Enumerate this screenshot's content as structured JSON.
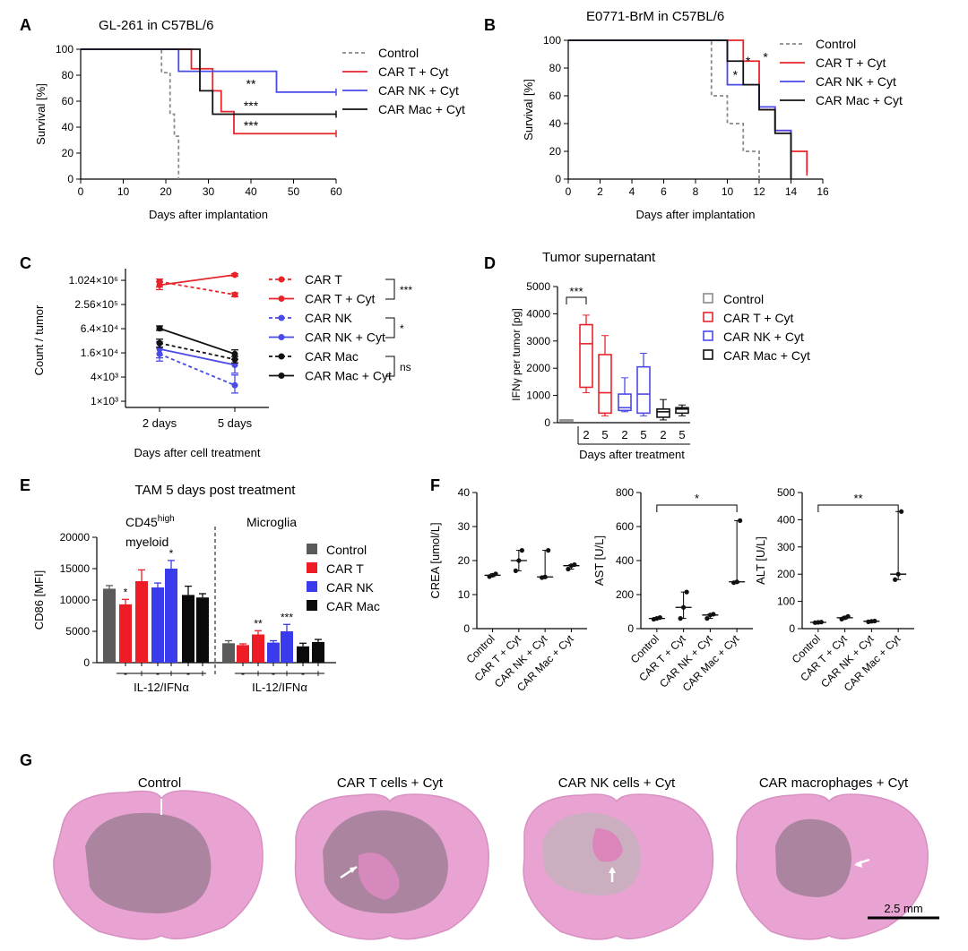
{
  "chart_data": [
    {
      "panel": "A",
      "type": "line",
      "title": "GL-261 in C57BL/6",
      "xlabel": "Days after implantation",
      "ylabel": "Survival [%]",
      "xlim": [
        0,
        60
      ],
      "ylim": [
        0,
        100
      ],
      "x_ticks": [
        "0",
        "10",
        "20",
        "30",
        "40",
        "50",
        "60"
      ],
      "y_ticks": [
        "0",
        "20",
        "40",
        "60",
        "80",
        "100"
      ],
      "legend_position": "right",
      "series": [
        {
          "name": "Control",
          "color": "#8a8a8a",
          "dash": true,
          "x": [
            0,
            19,
            19,
            21,
            21,
            22,
            22,
            23,
            23
          ],
          "y": [
            100,
            100,
            82,
            82,
            50,
            50,
            33,
            33,
            0
          ]
        },
        {
          "name": "CAR T + Cyt",
          "color": "#e8242b",
          "dash": false,
          "x": [
            0,
            26,
            26,
            31,
            31,
            33,
            33,
            36,
            36,
            60
          ],
          "y": [
            100,
            100,
            85,
            85,
            68,
            68,
            52,
            52,
            35,
            35
          ]
        },
        {
          "name": "CAR NK + Cyt",
          "color": "#4a4ae8",
          "dash": false,
          "x": [
            0,
            23,
            23,
            46,
            46,
            60
          ],
          "y": [
            100,
            100,
            83,
            83,
            67,
            67
          ]
        },
        {
          "name": "CAR Mac + Cyt",
          "color": "#111111",
          "dash": false,
          "x": [
            0,
            28,
            28,
            31,
            31,
            60
          ],
          "y": [
            100,
            100,
            68,
            68,
            50,
            50
          ]
        }
      ],
      "annotations": [
        {
          "text": "**",
          "x": 40,
          "y": 70
        },
        {
          "text": "***",
          "x": 40,
          "y": 53
        },
        {
          "text": "***",
          "x": 40,
          "y": 38
        }
      ]
    },
    {
      "panel": "B",
      "type": "line",
      "title": "E0771-BrM in C57BL/6",
      "xlabel": "Days after implantation",
      "ylabel": "Survival [%]",
      "xlim": [
        0,
        16
      ],
      "ylim": [
        0,
        100
      ],
      "x_ticks": [
        "0",
        "2",
        "4",
        "6",
        "8",
        "10",
        "12",
        "14",
        "16"
      ],
      "y_ticks": [
        "0",
        "20",
        "40",
        "60",
        "80",
        "100"
      ],
      "legend_position": "right",
      "series": [
        {
          "name": "Control",
          "color": "#8a8a8a",
          "dash": true,
          "x": [
            0,
            9,
            9,
            10,
            10,
            11,
            11,
            12,
            12
          ],
          "y": [
            100,
            100,
            60,
            60,
            40,
            40,
            20,
            20,
            0
          ]
        },
        {
          "name": "CAR T + Cyt",
          "color": "#e8242b",
          "dash": false,
          "x": [
            0,
            11,
            11,
            12,
            12,
            13,
            13,
            14,
            14,
            15,
            15
          ],
          "y": [
            100,
            100,
            85,
            85,
            50,
            50,
            35,
            35,
            20,
            20,
            5
          ]
        },
        {
          "name": "CAR NK + Cyt",
          "color": "#4a4ae8",
          "dash": false,
          "x": [
            0,
            10,
            10,
            11,
            11,
            12,
            12,
            13,
            13,
            14,
            14
          ],
          "y": [
            100,
            100,
            68,
            68,
            68,
            68,
            52,
            52,
            35,
            35,
            0
          ]
        },
        {
          "name": "CAR Mac + Cyt",
          "color": "#111111",
          "dash": false,
          "x": [
            0,
            10,
            10,
            11,
            11,
            12,
            12,
            13,
            13,
            14,
            14
          ],
          "y": [
            100,
            100,
            85,
            85,
            68,
            68,
            50,
            50,
            33,
            33,
            0
          ]
        }
      ],
      "annotations": [
        {
          "text": "*",
          "x": 10.5,
          "y": 72
        },
        {
          "text": "*",
          "x": 11.3,
          "y": 82
        },
        {
          "text": "*",
          "x": 12.4,
          "y": 85
        }
      ]
    },
    {
      "panel": "C",
      "type": "line",
      "xlabel": "Days after cell treatment",
      "ylabel": "Count / tumor",
      "y_scale": "log2",
      "categories": [
        "2 days",
        "5 days"
      ],
      "y_ticks": [
        "1×10³",
        "4×10³",
        "1.6×10⁴",
        "6.4×10⁴",
        "2.56×10⁵",
        "1.024×10⁶"
      ],
      "y_tick_values": [
        1000,
        4000,
        16000,
        64000,
        256000,
        1024000
      ],
      "ylim": [
        700,
        2000000
      ],
      "series": [
        {
          "name": "CAR T",
          "color": "#e8242b",
          "dash": true,
          "values": [
            950000,
            450000
          ],
          "err": [
            [
              700000,
              1100000
            ],
            [
              400000,
              500000
            ]
          ]
        },
        {
          "name": "CAR T + Cyt",
          "color": "#e8242b",
          "dash": false,
          "values": [
            780000,
            1400000
          ],
          "err": [
            [
              600000,
              950000
            ],
            [
              1300000,
              1500000
            ]
          ]
        },
        {
          "name": "CAR NK",
          "color": "#4a4ae8",
          "dash": true,
          "values": [
            15000,
            2500
          ],
          "err": [
            [
              10000,
              22000
            ],
            [
              1600,
              4500
            ]
          ]
        },
        {
          "name": "CAR NK + Cyt",
          "color": "#4a4ae8",
          "dash": false,
          "values": [
            20000,
            8000
          ],
          "err": [
            [
              12000,
              30000
            ],
            [
              5000,
              11000
            ]
          ]
        },
        {
          "name": "CAR Mac",
          "color": "#111111",
          "dash": true,
          "values": [
            28000,
            11000
          ],
          "err": [
            [
              22000,
              35000
            ],
            [
              9000,
              13000
            ]
          ]
        },
        {
          "name": "CAR Mac + Cyt",
          "color": "#111111",
          "dash": false,
          "values": [
            65000,
            15000
          ],
          "err": [
            [
              58000,
              75000
            ],
            [
              11000,
              19000
            ]
          ]
        }
      ],
      "significance": [
        "***",
        "*",
        "ns"
      ]
    },
    {
      "panel": "D",
      "type": "box",
      "title": "Tumor supernatant",
      "xlabel": "Days after treatment",
      "ylabel": "IFNγ per tumor [pg]",
      "ylim": [
        0,
        5000
      ],
      "y_ticks": [
        "0",
        "1000",
        "2000",
        "3000",
        "4000",
        "5000"
      ],
      "categories": [
        "",
        "2",
        "5",
        "2",
        "5",
        "2",
        "5"
      ],
      "legend_position": "right",
      "legend": [
        {
          "name": "Control",
          "color": "#8a8a8a"
        },
        {
          "name": "CAR T + Cyt",
          "color": "#e8242b"
        },
        {
          "name": "CAR NK + Cyt",
          "color": "#4a4ae8"
        },
        {
          "name": "CAR Mac + Cyt",
          "color": "#111111"
        }
      ],
      "boxes": [
        {
          "group": "Control",
          "day": "",
          "min": 100,
          "q1": 100,
          "median": 100,
          "q3": 100,
          "max": 100
        },
        {
          "group": "CAR T + Cyt",
          "day": "2",
          "min": 1100,
          "q1": 1300,
          "median": 2900,
          "q3": 3600,
          "max": 3950
        },
        {
          "group": "CAR T + Cyt",
          "day": "5",
          "min": 250,
          "q1": 350,
          "median": 1100,
          "q3": 2500,
          "max": 3200
        },
        {
          "group": "CAR NK + Cyt",
          "day": "2",
          "min": 400,
          "q1": 450,
          "median": 550,
          "q3": 1050,
          "max": 1650
        },
        {
          "group": "CAR NK + Cyt",
          "day": "5",
          "min": 250,
          "q1": 350,
          "median": 1050,
          "q3": 2050,
          "max": 2550
        },
        {
          "group": "CAR Mac + Cyt",
          "day": "2",
          "min": 100,
          "q1": 200,
          "median": 400,
          "q3": 500,
          "max": 850
        },
        {
          "group": "CAR Mac + Cyt",
          "day": "5",
          "min": 250,
          "q1": 350,
          "median": 500,
          "q3": 550,
          "max": 650
        }
      ],
      "significance": [
        "***"
      ]
    },
    {
      "panel": "E",
      "type": "bar",
      "title": "TAM 5 days post treatment",
      "ylabel": "CD86 [MFI]",
      "xlabel": "IL-12/IFNα",
      "ylim": [
        0,
        20000
      ],
      "y_ticks": [
        "0",
        "5000",
        "10000",
        "15000",
        "20000"
      ],
      "groups": [
        "CD45high myeloid",
        "Microglia"
      ],
      "tick_labels": [
        "-",
        "+",
        "-",
        "+",
        "-",
        "+",
        "-",
        "+"
      ],
      "legend": [
        {
          "name": "Control",
          "color": "#5a5a5a"
        },
        {
          "name": "CAR T",
          "color": "#ee1c25"
        },
        {
          "name": "CAR NK",
          "color": "#3b3bee"
        },
        {
          "name": "CAR Mac",
          "color": "#0a0a0a"
        }
      ],
      "bars": [
        {
          "group": "CD45high myeloid",
          "name": "Control",
          "treatment": "",
          "value": 11800,
          "err": 500,
          "sig": ""
        },
        {
          "group": "CD45high myeloid",
          "name": "CAR T",
          "treatment": "-",
          "value": 9300,
          "err": 800,
          "sig": "*"
        },
        {
          "group": "CD45high myeloid",
          "name": "CAR T",
          "treatment": "+",
          "value": 13000,
          "err": 1800,
          "sig": ""
        },
        {
          "group": "CD45high myeloid",
          "name": "CAR NK",
          "treatment": "-",
          "value": 12000,
          "err": 700,
          "sig": ""
        },
        {
          "group": "CD45high myeloid",
          "name": "CAR NK",
          "treatment": "+",
          "value": 15000,
          "err": 1300,
          "sig": "*"
        },
        {
          "group": "CD45high myeloid",
          "name": "CAR Mac",
          "treatment": "-",
          "value": 10800,
          "err": 1400,
          "sig": ""
        },
        {
          "group": "CD45high myeloid",
          "name": "CAR Mac",
          "treatment": "+",
          "value": 10400,
          "err": 600,
          "sig": ""
        },
        {
          "group": "Microglia",
          "name": "Control",
          "treatment": "",
          "value": 3100,
          "err": 400,
          "sig": ""
        },
        {
          "group": "Microglia",
          "name": "CAR T",
          "treatment": "-",
          "value": 2800,
          "err": 200,
          "sig": ""
        },
        {
          "group": "Microglia",
          "name": "CAR T",
          "treatment": "+",
          "value": 4500,
          "err": 600,
          "sig": "**"
        },
        {
          "group": "Microglia",
          "name": "CAR NK",
          "treatment": "-",
          "value": 3200,
          "err": 300,
          "sig": ""
        },
        {
          "group": "Microglia",
          "name": "CAR NK",
          "treatment": "+",
          "value": 5000,
          "err": 1100,
          "sig": "***"
        },
        {
          "group": "Microglia",
          "name": "CAR Mac",
          "treatment": "-",
          "value": 2600,
          "err": 500,
          "sig": ""
        },
        {
          "group": "Microglia",
          "name": "CAR Mac",
          "treatment": "+",
          "value": 3300,
          "err": 400,
          "sig": ""
        }
      ]
    },
    {
      "panel": "F",
      "type": "scatter",
      "categories": [
        "Control",
        "CAR T + Cyt",
        "CAR NK + Cyt",
        "CAR Mac + Cyt"
      ],
      "subplots": [
        {
          "ylabel": "CREA [umol/L]",
          "ylim": [
            0,
            40
          ],
          "y_ticks": [
            "0",
            "10",
            "20",
            "30",
            "40"
          ],
          "points": [
            [
              15.3,
              15.7,
              16.1
            ],
            [
              17,
              20,
              23
            ],
            [
              15,
              15.2,
              23
            ],
            [
              17.5,
              18.5,
              18.8
            ]
          ],
          "median": [
            15.7,
            20,
            15.2,
            18.5
          ],
          "range": [
            [
              15.3,
              16.1
            ],
            [
              17,
              23
            ],
            [
              15,
              23
            ],
            [
              17.5,
              18.8
            ]
          ],
          "significance": ""
        },
        {
          "ylabel": "AST [U/L]",
          "ylim": [
            0,
            800
          ],
          "y_ticks": [
            "0",
            "200",
            "400",
            "600",
            "800"
          ],
          "points": [
            [
              55,
              60,
              65
            ],
            [
              60,
              125,
              215
            ],
            [
              60,
              80,
              85
            ],
            [
              270,
              275,
              635
            ]
          ],
          "median": [
            60,
            125,
            80,
            275
          ],
          "range": [
            [
              55,
              65
            ],
            [
              60,
              215
            ],
            [
              60,
              85
            ],
            [
              270,
              635
            ]
          ],
          "significance": "*"
        },
        {
          "ylabel": "ALT [U/L]",
          "ylim": [
            0,
            500
          ],
          "y_ticks": [
            "0",
            "100",
            "200",
            "300",
            "400",
            "500"
          ],
          "points": [
            [
              22,
              23,
              24
            ],
            [
              35,
              40,
              45
            ],
            [
              25,
              27,
              28
            ],
            [
              180,
              200,
              430
            ]
          ],
          "median": [
            23,
            40,
            27,
            200
          ],
          "range": [
            [
              22,
              24
            ],
            [
              35,
              45
            ],
            [
              25,
              28
            ],
            [
              180,
              430
            ]
          ],
          "significance": "**"
        }
      ]
    }
  ],
  "panels": {
    "A": "A",
    "B": "B",
    "C": "C",
    "D": "D",
    "E": "E",
    "F": "F",
    "G": "G"
  },
  "panel_c": {
    "title_line": "",
    "legend": [
      "CAR T",
      "CAR T + Cyt",
      "CAR NK",
      "CAR NK + Cyt",
      "CAR Mac",
      "CAR Mac + Cyt"
    ]
  },
  "panel_e": {
    "group1_line1": "CD45",
    "group1_sup": "high",
    "group1_line2": "myeloid",
    "group2": "Microglia"
  },
  "panel_g": {
    "labels": [
      "Control",
      "CAR T cells + Cyt",
      "CAR NK cells + Cyt",
      "CAR macrophages + Cyt"
    ],
    "scale_bar": "2.5 mm",
    "tissue_color": "#e8a3d2",
    "tumor_color": "#a8839c"
  }
}
